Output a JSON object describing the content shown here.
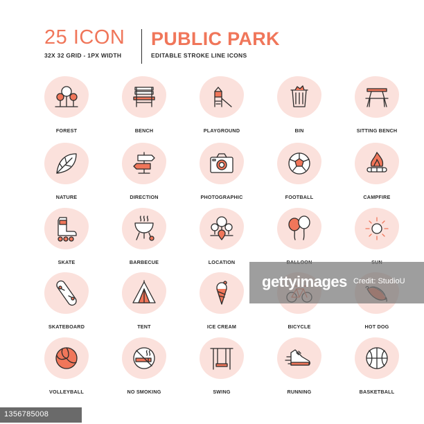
{
  "header": {
    "count": "25",
    "icon_word": "ICON",
    "title": "PUBLIC PARK",
    "subtitle_left": "32X 32 GRID - 1PX WIDTH",
    "subtitle_right": "EDITABLE STROKE LINE ICONS"
  },
  "colors": {
    "accent": "#f0765a",
    "blob": "#fbe1dc",
    "stroke": "#2b2b2b"
  },
  "icons": [
    {
      "label": "FOREST",
      "icon": "forest-icon"
    },
    {
      "label": "BENCH",
      "icon": "bench-icon"
    },
    {
      "label": "PLAYGROUND",
      "icon": "playground-icon"
    },
    {
      "label": "BIN",
      "icon": "bin-icon"
    },
    {
      "label": "SITTING BENCH",
      "icon": "sitting-bench-icon"
    },
    {
      "label": "NATURE",
      "icon": "leaf-icon"
    },
    {
      "label": "DIRECTION",
      "icon": "signpost-icon"
    },
    {
      "label": "PHOTOGRAPHIC",
      "icon": "camera-icon"
    },
    {
      "label": "FOOTBALL",
      "icon": "football-icon"
    },
    {
      "label": "CAMPFIRE",
      "icon": "campfire-icon"
    },
    {
      "label": "SKATE",
      "icon": "roller-skate-icon"
    },
    {
      "label": "BARBECUE",
      "icon": "barbecue-icon"
    },
    {
      "label": "LOCATION",
      "icon": "location-icon"
    },
    {
      "label": "BALLOON",
      "icon": "balloon-icon"
    },
    {
      "label": "SUN",
      "icon": "sun-icon"
    },
    {
      "label": "SKATEBOARD",
      "icon": "skateboard-icon"
    },
    {
      "label": "TENT",
      "icon": "tent-icon"
    },
    {
      "label": "ICE CREAM",
      "icon": "ice-cream-icon"
    },
    {
      "label": "BICYCLE",
      "icon": "bicycle-icon"
    },
    {
      "label": "HOT DOG",
      "icon": "hot-dog-icon"
    },
    {
      "label": "VOLLEYBALL",
      "icon": "volleyball-icon"
    },
    {
      "label": "NO SMOKING",
      "icon": "no-smoking-icon"
    },
    {
      "label": "SWING",
      "icon": "swing-icon"
    },
    {
      "label": "RUNNING",
      "icon": "running-shoe-icon"
    },
    {
      "label": "BASKETBALL",
      "icon": "basketball-icon"
    }
  ],
  "watermark": {
    "brand": "gettyimages",
    "credit": "Credit: StudioU",
    "id": "1356785008"
  }
}
